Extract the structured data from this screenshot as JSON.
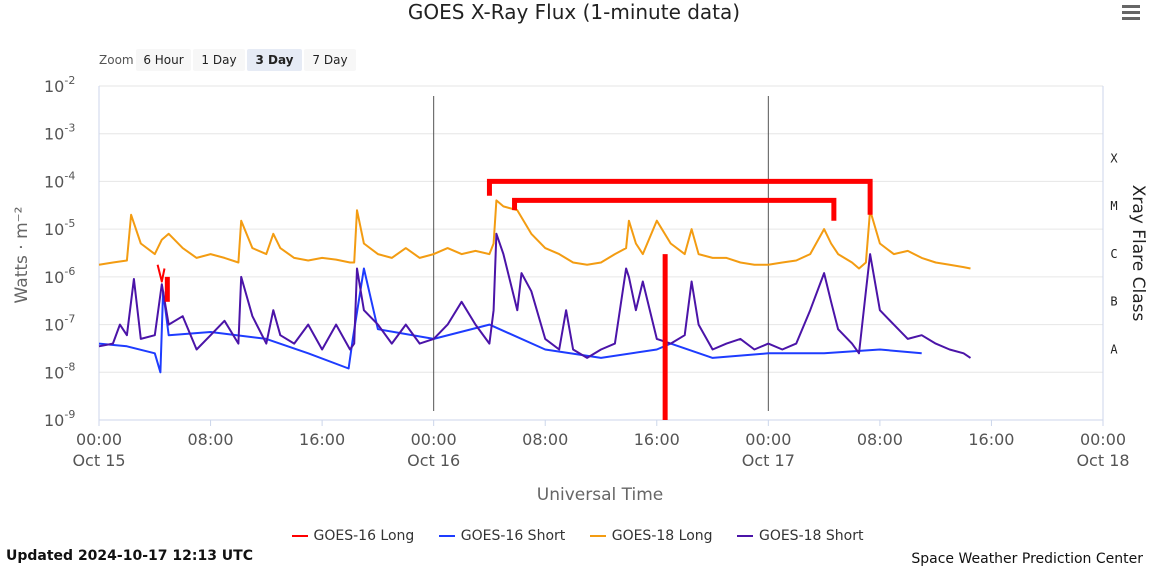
{
  "zoom": {
    "label": "Zoom",
    "buttons": [
      "6 Hour",
      "1 Day",
      "3 Day",
      "7 Day"
    ],
    "active": "3 Day"
  },
  "footer": {
    "updated": "Updated 2024-10-17 12:13 UTC",
    "credit": "Space Weather Prediction Center"
  },
  "colors": {
    "goes16_long": "#ff0000",
    "goes16_short": "#1e3cff",
    "goes18_long": "#f39c12",
    "goes18_short": "#4b14a8"
  },
  "chart_data": {
    "type": "line",
    "title": "GOES X-Ray Flux (1-minute data)",
    "xlabel": "Universal Time",
    "ylabel": "Watts · m⁻²",
    "y2label": "Xray Flare Class",
    "y_scale": "log",
    "ylim": [
      1e-09,
      0.01
    ],
    "y_ticks": [
      {
        "base": "10",
        "exp": "-9"
      },
      {
        "base": "10",
        "exp": "-8"
      },
      {
        "base": "10",
        "exp": "-7"
      },
      {
        "base": "10",
        "exp": "-6"
      },
      {
        "base": "10",
        "exp": "-5"
      },
      {
        "base": "10",
        "exp": "-4"
      },
      {
        "base": "10",
        "exp": "-3"
      },
      {
        "base": "10",
        "exp": "-2"
      }
    ],
    "x_range_hours": [
      0,
      72
    ],
    "x_ticks": [
      {
        "h": 0,
        "line1": "00:00",
        "line2": "Oct 15"
      },
      {
        "h": 8,
        "line1": "08:00",
        "line2": ""
      },
      {
        "h": 16,
        "line1": "16:00",
        "line2": ""
      },
      {
        "h": 24,
        "line1": "00:00",
        "line2": "Oct 16"
      },
      {
        "h": 32,
        "line1": "08:00",
        "line2": ""
      },
      {
        "h": 40,
        "line1": "16:00",
        "line2": ""
      },
      {
        "h": 48,
        "line1": "00:00",
        "line2": "Oct 17"
      },
      {
        "h": 56,
        "line1": "08:00",
        "line2": ""
      },
      {
        "h": 64,
        "line1": "16:00",
        "line2": ""
      },
      {
        "h": 72,
        "line1": "00:00",
        "line2": "Oct 18"
      }
    ],
    "day_lines_hours": [
      24,
      48
    ],
    "flare_classes": [
      {
        "label": "A",
        "flux": 1e-08
      },
      {
        "label": "B",
        "flux": 1e-07
      },
      {
        "label": "C",
        "flux": 1e-06
      },
      {
        "label": "M",
        "flux": 1e-05
      },
      {
        "label": "X",
        "flux": 0.0001
      }
    ],
    "series": [
      {
        "name": "GOES-16 Long",
        "color": "#ff0000",
        "points": [
          [
            4.2,
            1.8e-06
          ],
          [
            4.5,
            8e-07
          ],
          [
            4.7,
            1.5e-06
          ]
        ]
      },
      {
        "name": "GOES-16 Short",
        "color": "#1e3cff",
        "points": [
          [
            0,
            4e-08
          ],
          [
            2,
            3.5e-08
          ],
          [
            4,
            2.5e-08
          ],
          [
            4.4,
            1e-08
          ],
          [
            4.6,
            5e-07
          ],
          [
            5,
            6e-08
          ],
          [
            8,
            7e-08
          ],
          [
            12,
            5e-08
          ],
          [
            15,
            2.5e-08
          ],
          [
            17.9,
            1.2e-08
          ],
          [
            18.2,
            5e-08
          ],
          [
            19,
            1.5e-06
          ],
          [
            20,
            8e-08
          ],
          [
            24,
            5e-08
          ],
          [
            28,
            1e-07
          ],
          [
            32,
            3e-08
          ],
          [
            36,
            2e-08
          ],
          [
            40,
            3e-08
          ],
          [
            41,
            4e-08
          ],
          [
            44,
            2e-08
          ],
          [
            48,
            2.5e-08
          ],
          [
            52,
            2.5e-08
          ],
          [
            56,
            3e-08
          ],
          [
            59,
            2.5e-08
          ]
        ]
      },
      {
        "name": "GOES-18 Long",
        "color": "#f39c12",
        "points": [
          [
            0,
            1.8e-06
          ],
          [
            1,
            2e-06
          ],
          [
            2,
            2.2e-06
          ],
          [
            2.3,
            2e-05
          ],
          [
            3,
            5e-06
          ],
          [
            4,
            3e-06
          ],
          [
            4.5,
            6e-06
          ],
          [
            5,
            8e-06
          ],
          [
            6,
            4e-06
          ],
          [
            7,
            2.5e-06
          ],
          [
            8,
            3e-06
          ],
          [
            9,
            2.5e-06
          ],
          [
            10,
            2e-06
          ],
          [
            10.2,
            1.5e-05
          ],
          [
            11,
            4e-06
          ],
          [
            12,
            3e-06
          ],
          [
            12.5,
            8e-06
          ],
          [
            13,
            4e-06
          ],
          [
            14,
            2.5e-06
          ],
          [
            15,
            2.2e-06
          ],
          [
            16,
            2.5e-06
          ],
          [
            17,
            2.3e-06
          ],
          [
            18,
            2e-06
          ],
          [
            18.3,
            2e-06
          ],
          [
            18.5,
            2.5e-05
          ],
          [
            19,
            5e-06
          ],
          [
            20,
            3e-06
          ],
          [
            21,
            2.5e-06
          ],
          [
            22,
            4e-06
          ],
          [
            23,
            2.5e-06
          ],
          [
            24,
            3e-06
          ],
          [
            25,
            4e-06
          ],
          [
            26,
            3e-06
          ],
          [
            27,
            3.5e-06
          ],
          [
            28,
            3e-06
          ],
          [
            28.3,
            5e-06
          ],
          [
            28.5,
            4e-05
          ],
          [
            29,
            3e-05
          ],
          [
            30,
            2.5e-05
          ],
          [
            31,
            8e-06
          ],
          [
            32,
            4e-06
          ],
          [
            33,
            3e-06
          ],
          [
            34,
            2e-06
          ],
          [
            35,
            1.8e-06
          ],
          [
            36,
            2e-06
          ],
          [
            37,
            3e-06
          ],
          [
            37.8,
            4e-06
          ],
          [
            38,
            1.5e-05
          ],
          [
            38.5,
            5e-06
          ],
          [
            39,
            3e-06
          ],
          [
            40,
            1.5e-05
          ],
          [
            41,
            5e-06
          ],
          [
            42,
            3e-06
          ],
          [
            42.5,
            1e-05
          ],
          [
            43,
            3e-06
          ],
          [
            44,
            2.5e-06
          ],
          [
            45,
            2.5e-06
          ],
          [
            46,
            2e-06
          ],
          [
            47,
            1.8e-06
          ],
          [
            48,
            1.8e-06
          ],
          [
            49,
            2e-06
          ],
          [
            50,
            2.2e-06
          ],
          [
            51,
            3e-06
          ],
          [
            52,
            1e-05
          ],
          [
            52.5,
            5e-06
          ],
          [
            53,
            3e-06
          ],
          [
            54,
            2e-06
          ],
          [
            54.5,
            1.5e-06
          ],
          [
            55,
            2e-06
          ],
          [
            55.3,
            2.5e-05
          ],
          [
            56,
            5e-06
          ],
          [
            57,
            3e-06
          ],
          [
            58,
            3.5e-06
          ],
          [
            59,
            2.5e-06
          ],
          [
            60,
            2e-06
          ],
          [
            61,
            1.8e-06
          ],
          [
            62,
            1.6e-06
          ],
          [
            62.5,
            1.5e-06
          ]
        ]
      },
      {
        "name": "GOES-18 Short",
        "color": "#4b14a8",
        "points": [
          [
            0,
            3.5e-08
          ],
          [
            1,
            4e-08
          ],
          [
            1.5,
            1e-07
          ],
          [
            2,
            6e-08
          ],
          [
            2.5,
            9e-07
          ],
          [
            3,
            5e-08
          ],
          [
            4,
            6e-08
          ],
          [
            4.5,
            7e-07
          ],
          [
            5,
            1e-07
          ],
          [
            6,
            1.5e-07
          ],
          [
            7,
            3e-08
          ],
          [
            8,
            6e-08
          ],
          [
            9,
            1.2e-07
          ],
          [
            10,
            4e-08
          ],
          [
            10.2,
            1e-06
          ],
          [
            11,
            1.5e-07
          ],
          [
            12,
            4e-08
          ],
          [
            12.5,
            2e-07
          ],
          [
            13,
            6e-08
          ],
          [
            14,
            4e-08
          ],
          [
            15,
            1e-07
          ],
          [
            16,
            3e-08
          ],
          [
            17,
            1e-07
          ],
          [
            18,
            3e-08
          ],
          [
            18.3,
            4e-08
          ],
          [
            18.5,
            1.5e-06
          ],
          [
            19,
            2e-07
          ],
          [
            20,
            1e-07
          ],
          [
            21,
            4e-08
          ],
          [
            22,
            1e-07
          ],
          [
            23,
            4e-08
          ],
          [
            24,
            5e-08
          ],
          [
            25,
            1e-07
          ],
          [
            26,
            3e-07
          ],
          [
            27,
            1e-07
          ],
          [
            28,
            4e-08
          ],
          [
            28.3,
            2e-07
          ],
          [
            28.5,
            8e-06
          ],
          [
            29,
            3e-06
          ],
          [
            30,
            2e-07
          ],
          [
            30.3,
            1.2e-06
          ],
          [
            31,
            5e-07
          ],
          [
            32,
            5e-08
          ],
          [
            33,
            3e-08
          ],
          [
            33.5,
            2e-07
          ],
          [
            34,
            3e-08
          ],
          [
            35,
            2e-08
          ],
          [
            36,
            3e-08
          ],
          [
            37,
            4e-08
          ],
          [
            37.8,
            1.5e-06
          ],
          [
            38,
            1e-06
          ],
          [
            38.5,
            2e-07
          ],
          [
            39,
            8e-07
          ],
          [
            40,
            5e-08
          ],
          [
            41,
            4e-08
          ],
          [
            42,
            6e-08
          ],
          [
            42.5,
            8e-07
          ],
          [
            43,
            1e-07
          ],
          [
            44,
            3e-08
          ],
          [
            45,
            4e-08
          ],
          [
            46,
            5e-08
          ],
          [
            47,
            3e-08
          ],
          [
            48,
            4e-08
          ],
          [
            49,
            3e-08
          ],
          [
            50,
            4e-08
          ],
          [
            51,
            2e-07
          ],
          [
            52,
            1.2e-06
          ],
          [
            52.5,
            3e-07
          ],
          [
            53,
            8e-08
          ],
          [
            54,
            4e-08
          ],
          [
            54.5,
            2.5e-08
          ],
          [
            55,
            5e-07
          ],
          [
            55.3,
            3e-06
          ],
          [
            56,
            2e-07
          ],
          [
            57,
            1e-07
          ],
          [
            58,
            5e-08
          ],
          [
            59,
            6e-08
          ],
          [
            60,
            4e-08
          ],
          [
            61,
            3e-08
          ],
          [
            62,
            2.5e-08
          ],
          [
            62.5,
            2e-08
          ]
        ]
      }
    ],
    "annotations": [
      {
        "from_h": 28.0,
        "to_h": 55.3,
        "bar_flux": 0.0001,
        "end_flux_left": 5e-05,
        "end_flux_right": 2e-05
      },
      {
        "from_h": 29.8,
        "to_h": 52.7,
        "bar_flux": 4e-05,
        "end_flux_left": 2.5e-05,
        "end_flux_right": 1.5e-05
      },
      {
        "from_h": 4.9,
        "to_h": 4.9,
        "bar_flux": 1e-06,
        "end_flux_left": 1e-06,
        "end_flux_right": 3e-07
      },
      {
        "from_h": 40.6,
        "to_h": 40.6,
        "bar_flux": 3e-06,
        "end_flux_left": 3e-06,
        "end_flux_right": 1e-09
      }
    ]
  }
}
